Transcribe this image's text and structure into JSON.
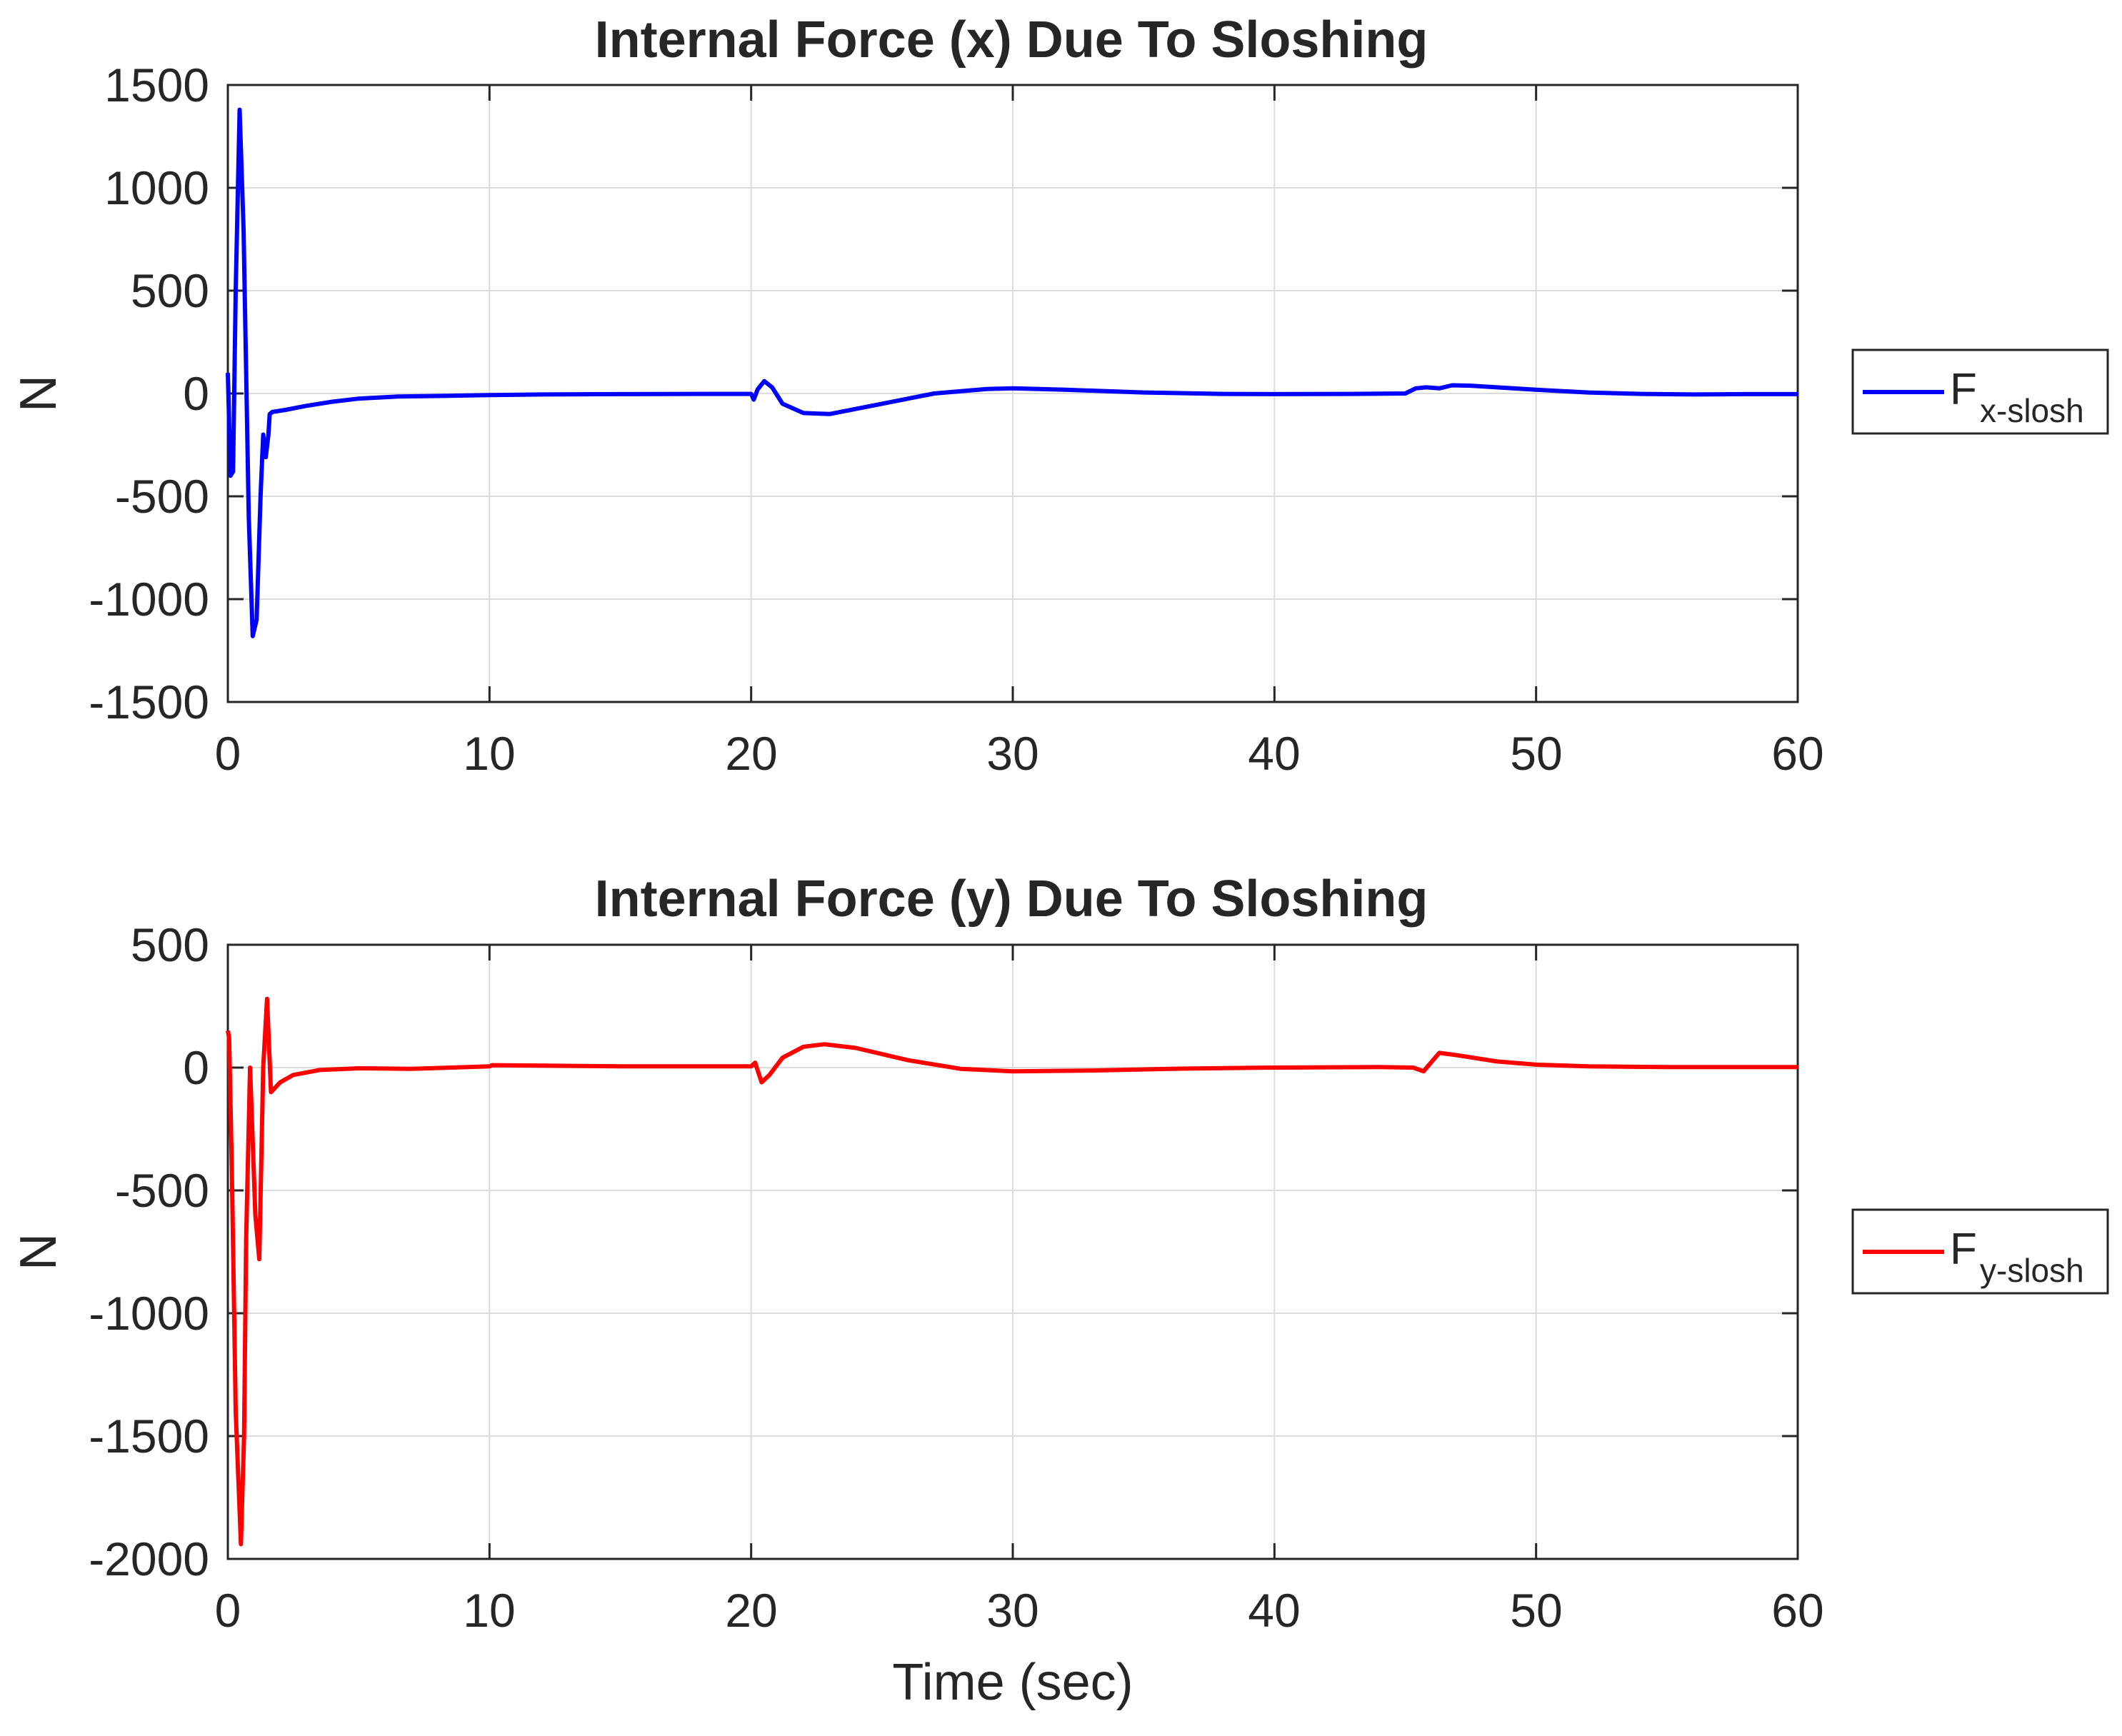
{
  "chart_data": [
    {
      "type": "line",
      "title": "Internal Force (x) Due To Sloshing",
      "xlabel": "",
      "ylabel": "N",
      "xlim": [
        0,
        60
      ],
      "ylim": [
        -1500,
        1500
      ],
      "xticks": [
        0,
        10,
        20,
        30,
        40,
        50,
        60
      ],
      "yticks": [
        1500,
        1000,
        500,
        0,
        -500,
        -1000,
        -1500
      ],
      "xtick_labels": [
        "0",
        "10",
        "20",
        "30",
        "40",
        "50",
        "60"
      ],
      "ytick_labels": [
        "1500",
        "1000",
        "500",
        "0",
        "-500",
        "-1000",
        "-1500"
      ],
      "grid": true,
      "legend_position": "right-outside",
      "series": [
        {
          "name": "Fx-slosh",
          "legend_main": "F",
          "legend_sub": "x-slosh",
          "color": "#0000ff",
          "x": [
            0,
            0.1,
            0.2,
            0.3,
            0.45,
            0.6,
            0.8,
            0.95,
            1.1,
            1.25,
            1.35,
            1.45,
            1.55,
            1.6,
            1.7,
            2.2,
            3,
            4,
            5,
            6.5,
            8,
            10,
            12,
            15,
            18,
            20,
            20.1,
            20.25,
            20.5,
            20.8,
            21.2,
            22,
            23,
            25,
            27,
            29,
            30,
            32,
            35,
            38,
            40,
            43,
            45,
            45.4,
            45.8,
            46.3,
            46.8,
            47.5,
            48.5,
            50,
            52,
            54,
            56,
            58,
            60
          ],
          "y": [
            100,
            -400,
            -380,
            500,
            1380,
            800,
            -600,
            -1180,
            -1100,
            -500,
            -200,
            -310,
            -200,
            -100,
            -90,
            -80,
            -60,
            -40,
            -25,
            -15,
            -12,
            -8,
            -5,
            -3,
            -2,
            -2,
            -30,
            20,
            60,
            30,
            -50,
            -95,
            -100,
            -50,
            0,
            22,
            25,
            18,
            5,
            -2,
            -3,
            -2,
            0,
            25,
            30,
            25,
            40,
            38,
            30,
            18,
            5,
            -2,
            -5,
            -3,
            -3
          ]
        }
      ]
    },
    {
      "type": "line",
      "title": "Internal Force (y) Due To Sloshing",
      "xlabel": "Time (sec)",
      "ylabel": "N",
      "xlim": [
        0,
        60
      ],
      "ylim": [
        -2000,
        500
      ],
      "xticks": [
        0,
        10,
        20,
        30,
        40,
        50,
        60
      ],
      "yticks": [
        500,
        0,
        -500,
        -1000,
        -1500,
        -2000
      ],
      "xtick_labels": [
        "0",
        "10",
        "20",
        "30",
        "40",
        "50",
        "60"
      ],
      "ytick_labels": [
        "500",
        "0",
        "-500",
        "-1000",
        "-1500",
        "-2000"
      ],
      "grid": true,
      "legend_position": "right-outside",
      "series": [
        {
          "name": "Fy-slosh",
          "legend_main": "F",
          "legend_sub": "y-slosh",
          "color": "#ff0000",
          "x": [
            0,
            0.05,
            0.15,
            0.3,
            0.5,
            0.62,
            0.7,
            0.85,
            1.05,
            1.2,
            1.35,
            1.5,
            1.65,
            2,
            2.5,
            3.5,
            5,
            7,
            10,
            10.1,
            15,
            20,
            20.15,
            20.4,
            20.7,
            21.2,
            22,
            22.8,
            24,
            26,
            28,
            30,
            33,
            36,
            40,
            44,
            45.3,
            45.7,
            46.3,
            47,
            48.5,
            50,
            52,
            55,
            58,
            60
          ],
          "y": [
            150,
            120,
            -400,
            -1400,
            -1940,
            -1500,
            -700,
            0,
            -600,
            -780,
            0,
            280,
            -100,
            -60,
            -30,
            -10,
            -3,
            -5,
            5,
            10,
            5,
            5,
            20,
            -60,
            -30,
            40,
            85,
            95,
            80,
            30,
            -5,
            -15,
            -12,
            -5,
            0,
            2,
            0,
            -15,
            60,
            50,
            25,
            12,
            5,
            2,
            2,
            2
          ]
        }
      ]
    }
  ]
}
